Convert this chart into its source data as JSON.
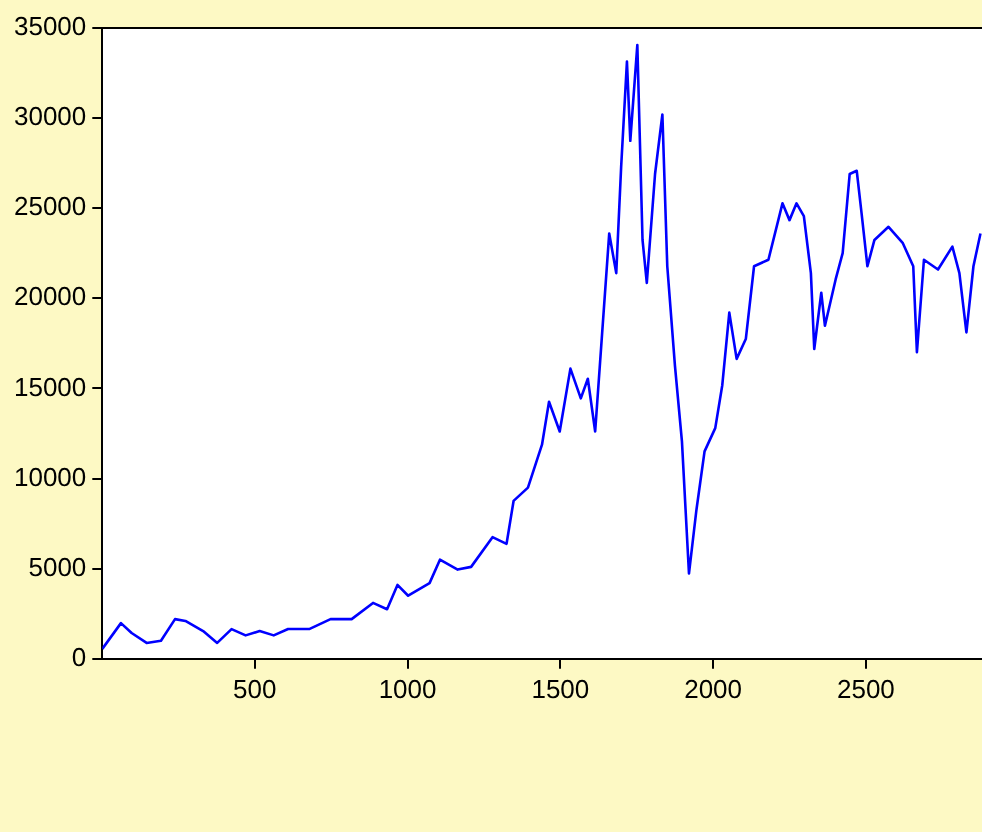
{
  "chart_data": {
    "type": "line",
    "x": [
      1,
      62,
      97,
      146,
      193,
      239,
      273,
      331,
      377,
      424,
      470,
      516,
      562,
      609,
      678,
      748,
      817,
      887,
      933,
      967,
      1002,
      1072,
      1106,
      1164,
      1208,
      1278,
      1324,
      1347,
      1394,
      1440,
      1463,
      1498,
      1533,
      1567,
      1590,
      1614,
      1637,
      1660,
      1683,
      1699,
      1718,
      1729,
      1752,
      1769,
      1783,
      1810,
      1834,
      1850,
      1875,
      1898,
      1921,
      1945,
      1972,
      2007,
      2030,
      2053,
      2077,
      2107,
      2134,
      2181,
      2227,
      2250,
      2273,
      2297,
      2320,
      2331,
      2354,
      2366,
      2401,
      2424,
      2447,
      2470,
      2486,
      2505,
      2528,
      2574,
      2621,
      2655,
      2667,
      2690,
      2736,
      2783,
      2806,
      2829,
      2852,
      2875
    ],
    "series": [
      {
        "color": "#0000ff",
        "values": [
          550,
          1980,
          1430,
          880,
          1000,
          2200,
          2100,
          1540,
          880,
          1650,
          1300,
          1540,
          1300,
          1650,
          1650,
          2200,
          2200,
          3100,
          2750,
          4100,
          3500,
          4200,
          5500,
          4950,
          5100,
          6750,
          6380,
          8760,
          9500,
          11880,
          14260,
          12610,
          16100,
          14450,
          15540,
          12610,
          18110,
          23600,
          21400,
          27280,
          33140,
          28740,
          34060,
          23240,
          20860,
          26900,
          30200,
          21780,
          16280,
          12060,
          4730,
          8210,
          11510,
          12800,
          15180,
          19210,
          16640,
          17740,
          21780,
          22140,
          25270,
          24340,
          25270,
          24560,
          21400,
          17190,
          20310,
          18480,
          21050,
          22510,
          26900,
          27080,
          24700,
          21780,
          23240,
          23970,
          23060,
          21780,
          17010,
          22140,
          21600,
          22870,
          21400,
          18110,
          21780,
          23600
        ]
      }
    ],
    "xlim": [
      1,
      2880
    ],
    "xticks": [
      500,
      1000,
      1500,
      2000,
      2500
    ],
    "ylim": [
      0,
      35000
    ],
    "yticks": [
      0,
      5000,
      10000,
      15000,
      20000,
      25000,
      30000,
      35000
    ],
    "grid": false,
    "legend": false,
    "marker": "none",
    "line_style": "solid"
  }
}
